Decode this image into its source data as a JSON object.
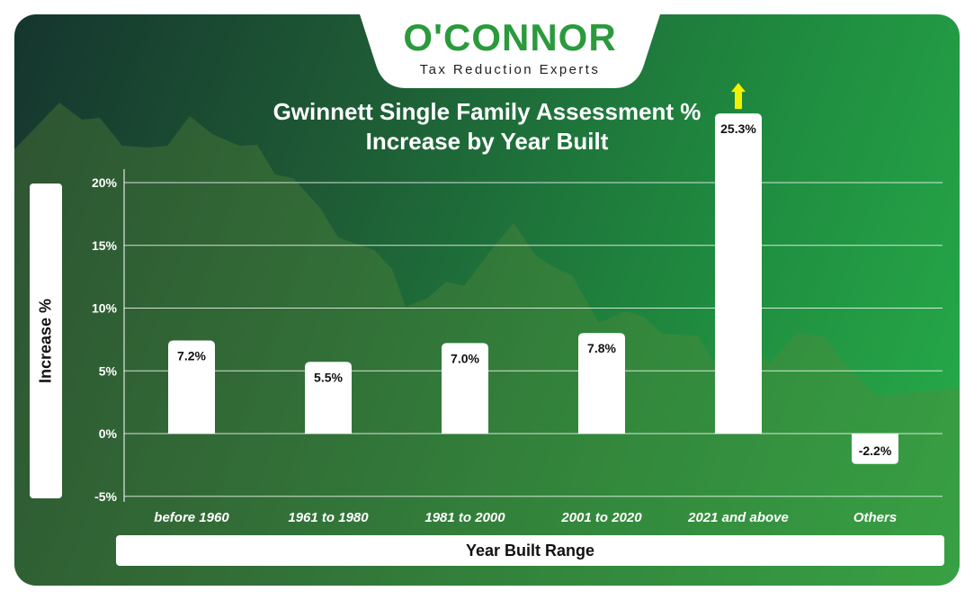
{
  "brand": {
    "name": "O'CONNOR",
    "tagline": "Tax Reduction Experts",
    "color": "#2a9a3d"
  },
  "chart_data": {
    "type": "bar",
    "title_line1": "Gwinnett Single Family Assessment %",
    "title_line2": "Increase by Year Built",
    "xlabel": "Year Built Range",
    "ylabel": "Increase %",
    "categories": [
      "before 1960",
      "1961 to 1980",
      "1981 to 2000",
      "2001 to 2020",
      "2021 and above",
      "Others"
    ],
    "values": [
      7.2,
      5.5,
      7.0,
      7.8,
      25.3,
      -2.2
    ],
    "value_labels": [
      "7.2%",
      "5.5%",
      "7.0%",
      "7.8%",
      "25.3%",
      "-2.2%"
    ],
    "yticks": [
      20,
      15,
      10,
      5,
      0,
      -5
    ],
    "ytick_labels": [
      "20%",
      "15%",
      "10%",
      "5%",
      "0%",
      "-5%"
    ],
    "ylim": [
      -5,
      20
    ],
    "grid": true,
    "bar_color": "#ffffff",
    "highlight_arrow": {
      "category": "2021 and above",
      "color": "#f2f200"
    }
  }
}
